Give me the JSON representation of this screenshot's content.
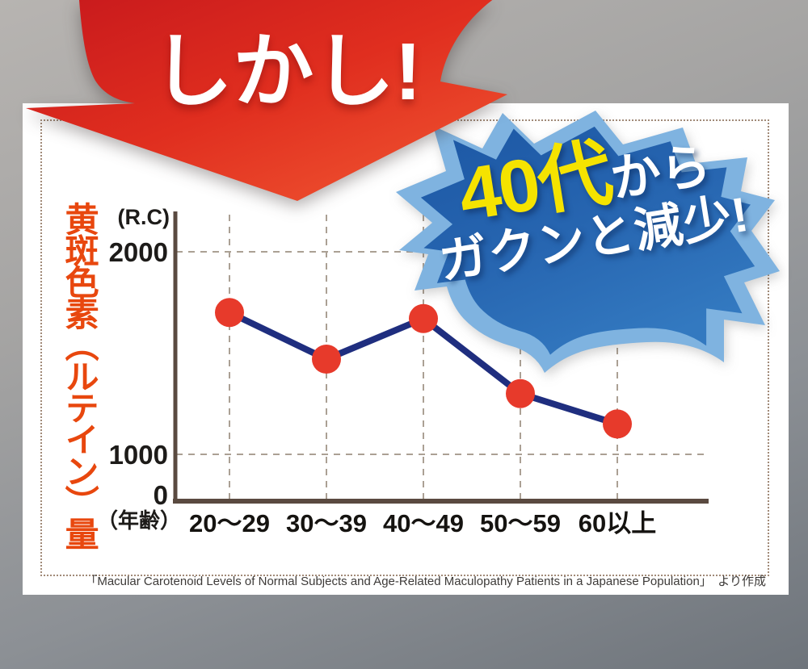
{
  "banner": {
    "label": "しかし!"
  },
  "burst": {
    "line1_em": "40代",
    "line1_rest": "から",
    "line2": "ガクンと減少!"
  },
  "chart": {
    "y_title": "黄斑色素（ルテイン）量",
    "unit_label": "(R.C)",
    "age_label": "（年齢）",
    "y_ticks": [
      "2000",
      "1000",
      "0"
    ],
    "x_labels": [
      "20〜29",
      "30〜39",
      "40〜49",
      "50〜59",
      "60以上"
    ]
  },
  "citation": "「Macular Carotenoid Levels of Normal Subjects and Age-Related Maculopathy Patients in a Japanese Population」　より作成",
  "colors": {
    "background_top": "#b7b4b1",
    "background_bottom": "#6e747b",
    "card": "#ffffff",
    "dotted_border": "#a18a78",
    "arrow_red_dark": "#c4161c",
    "arrow_red_bright": "#ef5330",
    "banner_text": "#ffffff",
    "burst_outer": "#7fb3e0",
    "burst_inner_dark": "#1c57a4",
    "burst_inner_light": "#3379c0",
    "burst_highlight_text": "#f5e300",
    "line": "#1f2e7f",
    "point": "#e73a2b",
    "axis": "#5a4a40",
    "grid": "#aba094",
    "y_title_text": "#e8470e"
  },
  "chart_data": {
    "type": "line",
    "title": "",
    "categories": [
      "20〜29",
      "30〜39",
      "40〜49",
      "50〜59",
      "60以上"
    ],
    "values": [
      1700,
      1470,
      1670,
      1300,
      1150
    ],
    "xlabel": "（年齢）",
    "ylabel": "黄斑色素（ルテイン）量 (R.C)",
    "ylim": [
      0,
      2100
    ],
    "y_ticks_shown": [
      0,
      1000,
      2000
    ],
    "grid": "dashed",
    "legend": "none",
    "annotation": "40代からガクンと減少!",
    "axis_note": "decorative axis: 0–1000 segment visually compressed"
  }
}
